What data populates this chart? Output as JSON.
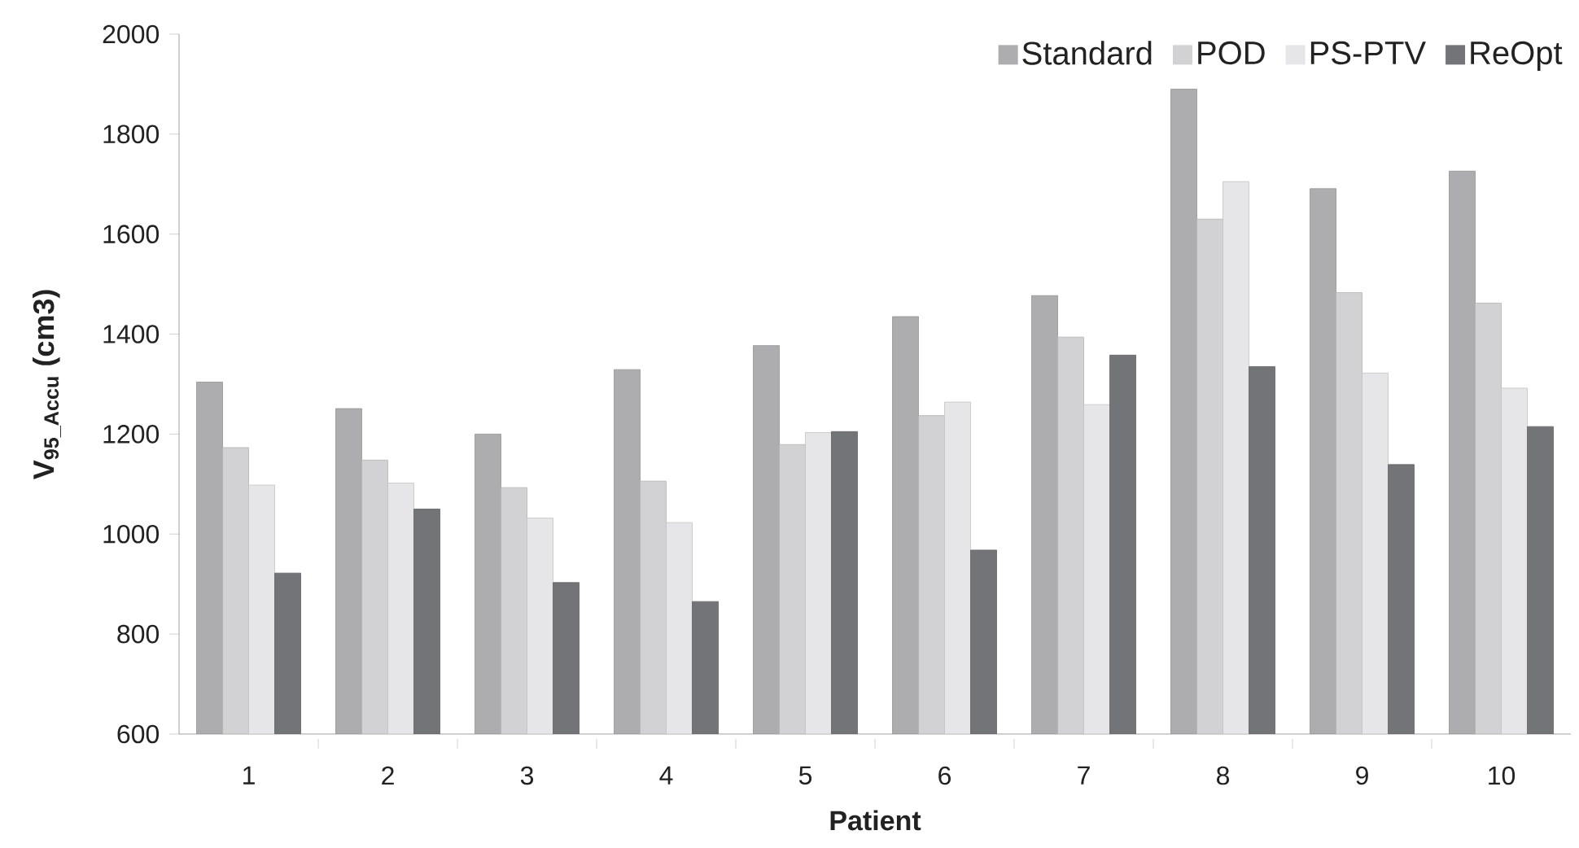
{
  "chart_data": {
    "type": "bar",
    "xlabel": "Patient",
    "ylabel": "V$_{95_Accu}$ (cm3)",
    "categories": [
      "1",
      "2",
      "3",
      "4",
      "5",
      "6",
      "7",
      "8",
      "9",
      "10"
    ],
    "series": [
      {
        "name": "Standard",
        "color": "#adadb0",
        "values": [
          1304,
          1251,
          1200,
          1329,
          1377,
          1435,
          1477,
          1890,
          1691,
          1726
        ]
      },
      {
        "name": "POD",
        "color": "#d2d2d4",
        "values": [
          1173,
          1148,
          1093,
          1106,
          1179,
          1237,
          1394,
          1630,
          1483,
          1462
        ]
      },
      {
        "name": "PS-PTV",
        "color": "#e6e6e8",
        "values": [
          1098,
          1102,
          1032,
          1023,
          1203,
          1264,
          1259,
          1705,
          1322,
          1292
        ]
      },
      {
        "name": "ReOpt",
        "color": "#737478",
        "values": [
          922,
          1050,
          903,
          865,
          1205,
          968,
          1358,
          1335,
          1139,
          1215
        ]
      }
    ],
    "ylim": [
      600,
      2000
    ],
    "yticks": [
      600,
      800,
      1000,
      1200,
      1400,
      1600,
      1800,
      2000
    ],
    "legend": "top right"
  }
}
